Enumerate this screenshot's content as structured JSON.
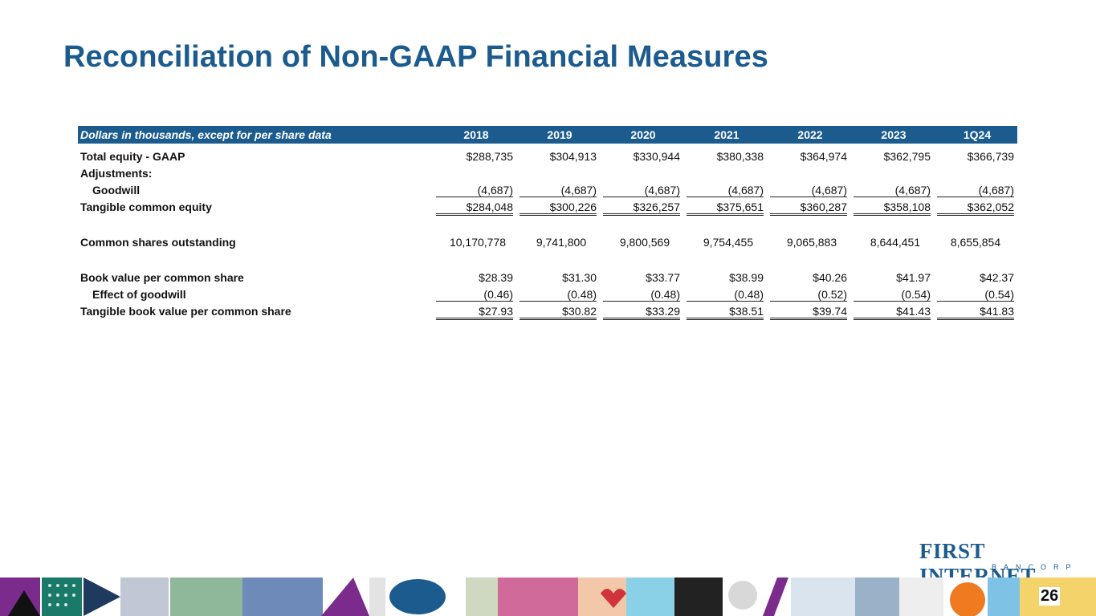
{
  "title": "Reconciliation of Non-GAAP Financial Measures",
  "table": {
    "header_label": "Dollars in thousands, except for per share data",
    "columns": [
      "2018",
      "2019",
      "2020",
      "2021",
      "2022",
      "2023",
      "1Q24"
    ],
    "rows": [
      {
        "label": "Total equity - GAAP",
        "values": [
          "$288,735",
          "$304,913",
          "$330,944",
          "$380,338",
          "$364,974",
          "$362,795",
          "$366,739"
        ]
      },
      {
        "label": "Adjustments:",
        "values": []
      },
      {
        "label": "Goodwill",
        "values": [
          "(4,687)",
          "(4,687)",
          "(4,687)",
          "(4,687)",
          "(4,687)",
          "(4,687)",
          "(4,687)"
        ]
      },
      {
        "label": "Tangible common equity",
        "values": [
          "$284,048",
          "$300,226",
          "$326,257",
          "$375,651",
          "$360,287",
          "$358,108",
          "$362,052"
        ]
      },
      {
        "label": "Common shares outstanding",
        "values": [
          "10,170,778",
          "9,741,800",
          "9,800,569",
          "9,754,455",
          "9,065,883",
          "8,644,451",
          "8,655,854"
        ]
      },
      {
        "label": "Book value per common share",
        "values": [
          "$28.39",
          "$31.30",
          "$33.77",
          "$38.99",
          "$40.26",
          "$41.97",
          "$42.37"
        ]
      },
      {
        "label": "Effect of goodwill",
        "values": [
          "(0.46)",
          "(0.48)",
          "(0.48)",
          "(0.48)",
          "(0.52)",
          "(0.54)",
          "(0.54)"
        ]
      },
      {
        "label": "Tangible book value per common share",
        "values": [
          "$27.93",
          "$30.82",
          "$33.29",
          "$38.51",
          "$39.74",
          "$41.43",
          "$41.83"
        ]
      }
    ]
  },
  "logo": {
    "brand": "FIRST INTERNET",
    "sub": "BANCORP"
  },
  "page_number": "26",
  "colors": {
    "brand_blue": "#1c5b8e",
    "brand_green": "#7a9a3a"
  }
}
